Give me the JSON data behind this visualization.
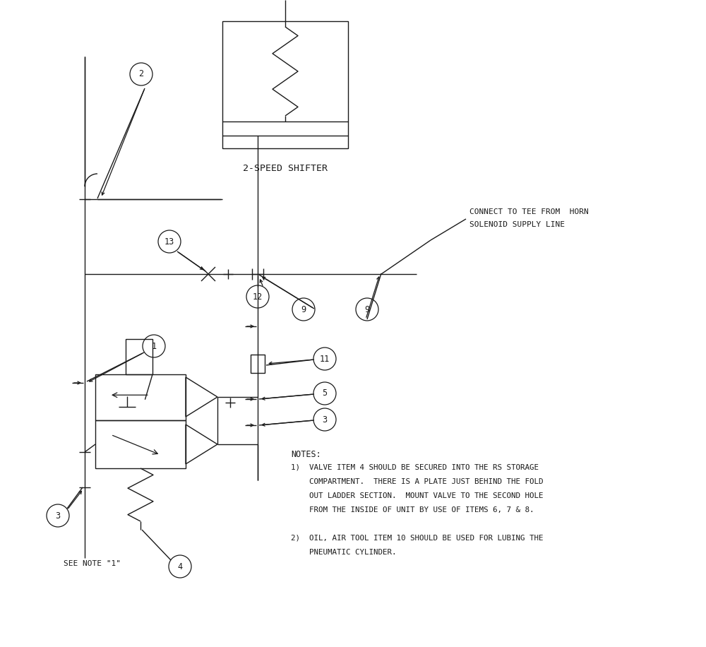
{
  "bg_color": "#ffffff",
  "lc": "#1a1a1a",
  "lw": 1.0,
  "fig_w": 10.0,
  "fig_h": 9.16,
  "notes": [
    "NOTES:",
    "1)  VALVE ITEM 4 SHOULD BE SECURED INTO THE RS STORAGE",
    "    COMPARTMENT.  THERE IS A PLATE JUST BEHIND THE FOLD",
    "    OUT LADDER SECTION.  MOUNT VALVE TO THE SECOND HOLE",
    "    FROM THE INSIDE OF UNIT BY USE OF ITEMS 6, 7 & 8.",
    "",
    "2)  OIL, AIR TOOL ITEM 10 SHOULD BE USED FOR LUBING THE",
    "    PNEUMATIC CYLINDER."
  ],
  "lbl_shifter": "2-SPEED SHIFTER",
  "lbl_connect1": "CONNECT TO TEE FROM  HORN",
  "lbl_connect2": "SOLENOID SUPPLY LINE",
  "lbl_see_note": "SEE NOTE \"1\""
}
